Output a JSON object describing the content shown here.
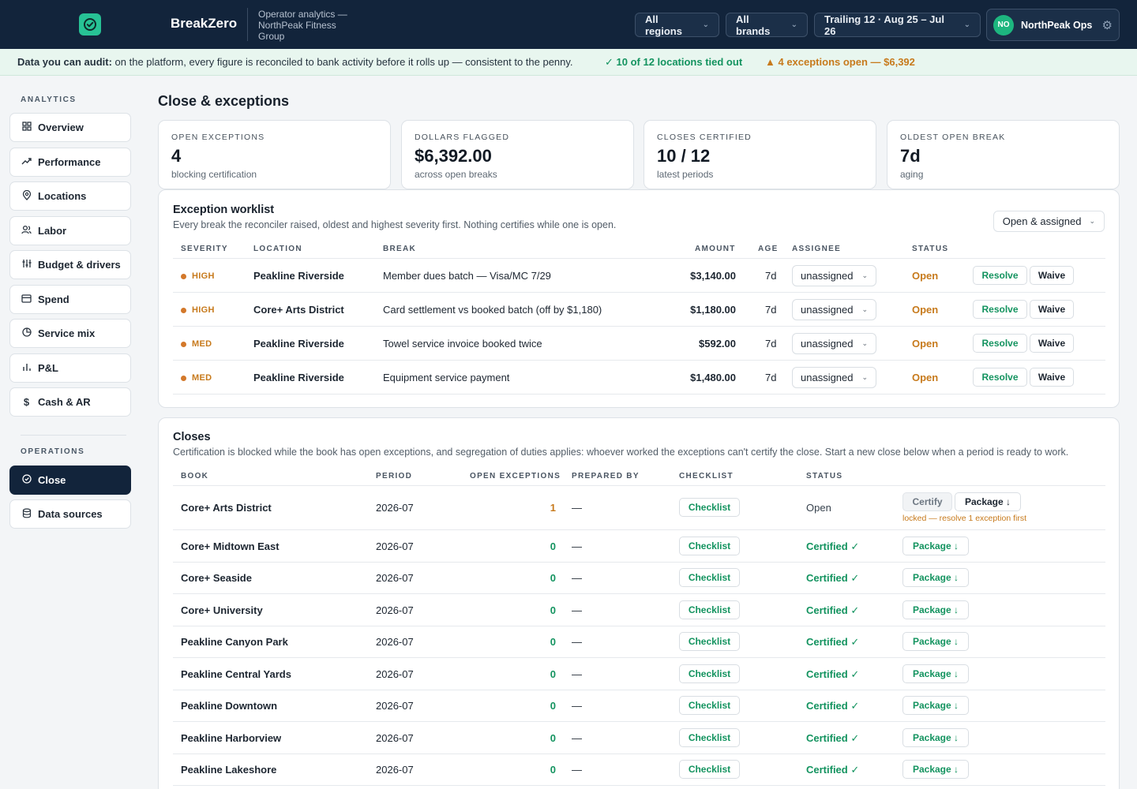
{
  "header": {
    "brand": "BreakZero",
    "subtitle": "Operator analytics — NorthPeak Fitness Group",
    "region_label": "All regions",
    "brands_label": "All brands",
    "period_label": "Trailing 12 · Aug 25 – Jul 26",
    "user_initials": "NO",
    "user_name": "NorthPeak Ops",
    "logo_icon": "check-circle-icon",
    "accent_color": "#27c295",
    "nav_color": "#12243b"
  },
  "banner": {
    "lead_bold": "Data you can audit:",
    "lead_text": " on the platform, every figure is reconciled to bank activity before it rolls up — consistent to the penny.",
    "tied_out": "✓ 10 of 12 locations tied out",
    "exceptions": "▲ 4 exceptions open — $6,392"
  },
  "sidebar": {
    "analytics_heading": "ANALYTICS",
    "operations_heading": "OPERATIONS",
    "analytics_items": [
      {
        "label": "Overview",
        "icon": "grid-icon"
      },
      {
        "label": "Performance",
        "icon": "trend-icon"
      },
      {
        "label": "Locations",
        "icon": "pin-icon"
      },
      {
        "label": "Labor",
        "icon": "users-icon"
      },
      {
        "label": "Budget & drivers",
        "icon": "sliders-icon"
      },
      {
        "label": "Spend",
        "icon": "card-icon"
      },
      {
        "label": "Service mix",
        "icon": "pie-icon"
      },
      {
        "label": "P&L",
        "icon": "bars-icon"
      },
      {
        "label": "Cash & AR",
        "icon": "dollar-icon"
      }
    ],
    "operations_items": [
      {
        "label": "Close",
        "icon": "check-circle-icon",
        "active": true
      },
      {
        "label": "Data sources",
        "icon": "database-icon"
      }
    ]
  },
  "page": {
    "title": "Close & exceptions"
  },
  "kpis": [
    {
      "label": "OPEN EXCEPTIONS",
      "value": "4",
      "sub": "blocking certification"
    },
    {
      "label": "DOLLARS FLAGGED",
      "value": "$6,392.00",
      "sub": "across open breaks"
    },
    {
      "label": "CLOSES CERTIFIED",
      "value": "10 / 12",
      "sub": "latest periods"
    },
    {
      "label": "OLDEST OPEN BREAK",
      "value": "7d",
      "sub": "aging"
    }
  ],
  "worklist": {
    "title": "Exception worklist",
    "desc": "Every break the reconciler raised, oldest and highest severity first. Nothing certifies while one is open.",
    "filter_label": "Open & assigned",
    "headers": {
      "severity": "SEVERITY",
      "location": "LOCATION",
      "break": "BREAK",
      "amount": "AMOUNT",
      "age": "AGE",
      "assignee": "ASSIGNEE",
      "status": "STATUS"
    },
    "resolve_label": "Resolve",
    "waive_label": "Waive",
    "rows": [
      {
        "severity": "HIGH",
        "location": "Peakline Riverside",
        "break": "Member dues batch — Visa/MC 7/29",
        "amount": "$3,140.00",
        "age": "7d",
        "assignee": "unassigned",
        "status": "Open"
      },
      {
        "severity": "HIGH",
        "location": "Core+ Arts District",
        "break": "Card settlement vs booked batch (off by $1,180)",
        "amount": "$1,180.00",
        "age": "7d",
        "assignee": "unassigned",
        "status": "Open"
      },
      {
        "severity": "MED",
        "location": "Peakline Riverside",
        "break": "Towel service invoice booked twice",
        "amount": "$592.00",
        "age": "7d",
        "assignee": "unassigned",
        "status": "Open"
      },
      {
        "severity": "MED",
        "location": "Peakline Riverside",
        "break": "Equipment service payment",
        "amount": "$1,480.00",
        "age": "7d",
        "assignee": "unassigned",
        "status": "Open"
      }
    ]
  },
  "closes": {
    "title": "Closes",
    "desc": "Certification is blocked while the book has open exceptions, and segregation of duties applies: whoever worked the exceptions can't certify the close. Start a new close below when a period is ready to work.",
    "headers": {
      "book": "BOOK",
      "period": "PERIOD",
      "open_exceptions": "OPEN EXCEPTIONS",
      "prepared_by": "PREPARED BY",
      "checklist": "CHECKLIST",
      "status": "STATUS"
    },
    "checklist_label": "Checklist",
    "certify_label": "Certify",
    "package_label": "Package ↓",
    "lock_note": "locked — resolve 1 exception first",
    "rows": [
      {
        "book": "Core+ Arts District",
        "period": "2026-07",
        "open": "1",
        "prepared": "—",
        "status": "Open"
      },
      {
        "book": "Core+ Midtown East",
        "period": "2026-07",
        "open": "0",
        "prepared": "—",
        "status": "Certified ✓"
      },
      {
        "book": "Core+ Seaside",
        "period": "2026-07",
        "open": "0",
        "prepared": "—",
        "status": "Certified ✓"
      },
      {
        "book": "Core+ University",
        "period": "2026-07",
        "open": "0",
        "prepared": "—",
        "status": "Certified ✓"
      },
      {
        "book": "Peakline Canyon Park",
        "period": "2026-07",
        "open": "0",
        "prepared": "—",
        "status": "Certified ✓"
      },
      {
        "book": "Peakline Central Yards",
        "period": "2026-07",
        "open": "0",
        "prepared": "—",
        "status": "Certified ✓"
      },
      {
        "book": "Peakline Downtown",
        "period": "2026-07",
        "open": "0",
        "prepared": "—",
        "status": "Certified ✓"
      },
      {
        "book": "Peakline Harborview",
        "period": "2026-07",
        "open": "0",
        "prepared": "—",
        "status": "Certified ✓"
      },
      {
        "book": "Peakline Lakeshore",
        "period": "2026-07",
        "open": "0",
        "prepared": "—",
        "status": "Certified ✓"
      }
    ]
  }
}
